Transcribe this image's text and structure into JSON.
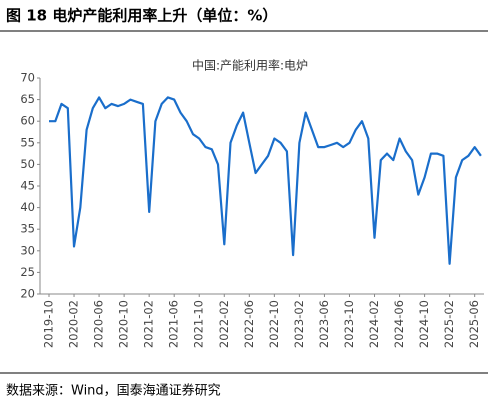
{
  "chart_data": {
    "type": "line",
    "title": "图 18  电炉产能利用率上升（单位：%）",
    "source": "数据来源：Wind，国泰海通证券研究",
    "categories": [
      "2019-10",
      null,
      null,
      null,
      "2020-02",
      null,
      null,
      null,
      "2020-06",
      null,
      null,
      null,
      "2020-10",
      null,
      null,
      null,
      "2021-02",
      null,
      null,
      null,
      "2021-06",
      null,
      null,
      null,
      "2021-10",
      null,
      null,
      null,
      "2022-02",
      null,
      null,
      null,
      "2022-06",
      null,
      null,
      null,
      "2022-10",
      null,
      null,
      null,
      "2023-02",
      null,
      null,
      null,
      "2023-06",
      null,
      null,
      null,
      "2023-10",
      null,
      null,
      null,
      "2024-02",
      null,
      null,
      null,
      "2024-06",
      null,
      null,
      null,
      "2024-10",
      null,
      null,
      null,
      "2025-02",
      null,
      null,
      null,
      "2025-06",
      null
    ],
    "series": [
      {
        "name": "中国:产能利用率:电炉",
        "color": "#1a6ecb",
        "values": [
          60,
          60,
          64,
          63,
          31,
          40,
          58,
          63,
          65.5,
          63,
          64,
          63.5,
          64,
          65,
          64.5,
          64,
          39,
          60,
          64,
          65.5,
          65,
          62,
          60,
          57,
          56,
          54,
          53.5,
          50,
          31.5,
          55,
          59,
          62,
          55,
          48,
          50,
          52,
          56,
          55,
          53,
          29,
          55,
          62,
          58,
          54,
          54,
          54.5,
          55,
          54,
          55,
          58,
          60,
          56,
          33,
          51,
          52.5,
          51,
          56,
          53,
          51,
          43,
          47,
          52.5,
          52.5,
          52,
          27,
          47,
          51,
          52,
          54,
          52
        ]
      }
    ],
    "ylim": [
      20,
      70
    ],
    "yticks": [
      20,
      25,
      30,
      35,
      40,
      45,
      50,
      55,
      60,
      65,
      70
    ]
  }
}
